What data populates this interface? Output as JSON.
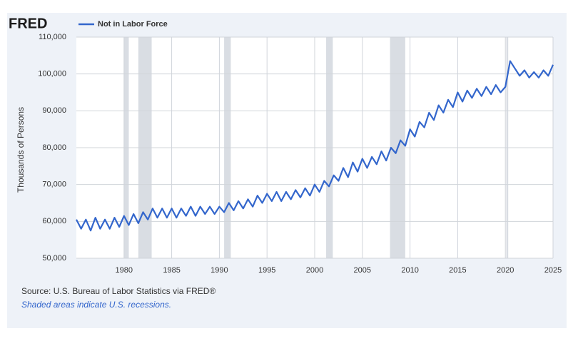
{
  "logo": "FRED",
  "chart_data": {
    "type": "line",
    "y_label": "Thousands of Persons",
    "source": "Source: U.S. Bureau of Labor Statistics via FRED®",
    "note": "Shaded areas indicate U.S. recessions.",
    "xlim": [
      1975,
      2025
    ],
    "xticks": [
      1980,
      1985,
      1990,
      1995,
      2000,
      2005,
      2010,
      2015,
      2020,
      2025
    ],
    "ylim": [
      50000,
      110000
    ],
    "yticks": [
      {
        "value": 50000,
        "label": "50,000"
      },
      {
        "value": 60000,
        "label": "60,000"
      },
      {
        "value": 70000,
        "label": "70,000"
      },
      {
        "value": 80000,
        "label": "80,000"
      },
      {
        "value": 90000,
        "label": "90,000"
      },
      {
        "value": 100000,
        "label": "100,000"
      },
      {
        "value": 110000,
        "label": "110,000"
      }
    ],
    "grid": true,
    "recessions": [
      [
        1980.0,
        1980.5
      ],
      [
        1981.5,
        1982.9
      ],
      [
        1990.5,
        1991.2
      ],
      [
        2001.2,
        2001.9
      ],
      [
        2007.9,
        2009.5
      ],
      [
        2020.1,
        2020.3
      ]
    ],
    "recession_color": "#d9dde3",
    "x": [
      1975.0,
      1975.5,
      1976.0,
      1976.5,
      1977.0,
      1977.5,
      1978.0,
      1978.5,
      1979.0,
      1979.5,
      1980.0,
      1980.5,
      1981.0,
      1981.5,
      1982.0,
      1982.5,
      1983.0,
      1983.5,
      1984.0,
      1984.5,
      1985.0,
      1985.5,
      1986.0,
      1986.5,
      1987.0,
      1987.5,
      1988.0,
      1988.5,
      1989.0,
      1989.5,
      1990.0,
      1990.5,
      1991.0,
      1991.5,
      1992.0,
      1992.5,
      1993.0,
      1993.5,
      1994.0,
      1994.5,
      1995.0,
      1995.5,
      1996.0,
      1996.5,
      1997.0,
      1997.5,
      1998.0,
      1998.5,
      1999.0,
      1999.5,
      2000.0,
      2000.5,
      2001.0,
      2001.5,
      2002.0,
      2002.5,
      2003.0,
      2003.5,
      2004.0,
      2004.5,
      2005.0,
      2005.5,
      2006.0,
      2006.5,
      2007.0,
      2007.5,
      2008.0,
      2008.5,
      2009.0,
      2009.5,
      2010.0,
      2010.5,
      2011.0,
      2011.5,
      2012.0,
      2012.5,
      2013.0,
      2013.5,
      2014.0,
      2014.5,
      2015.0,
      2015.5,
      2016.0,
      2016.5,
      2017.0,
      2017.5,
      2018.0,
      2018.5,
      2019.0,
      2019.5,
      2020.0,
      2020.5,
      2021.0,
      2021.5,
      2022.0,
      2022.5,
      2023.0,
      2023.5,
      2024.0,
      2024.5,
      2025.0
    ],
    "series": [
      {
        "name": "Not in Labor Force",
        "color": "#3366cc",
        "values": [
          60500,
          58000,
          60500,
          57500,
          61000,
          58000,
          60500,
          58000,
          61000,
          58500,
          61500,
          59000,
          62000,
          59500,
          62500,
          60500,
          63500,
          61000,
          63500,
          61000,
          63500,
          61000,
          63500,
          61500,
          64000,
          61500,
          64000,
          62000,
          64000,
          62000,
          64000,
          62500,
          65000,
          63000,
          65500,
          63500,
          66000,
          64000,
          67000,
          65000,
          67500,
          65500,
          68000,
          65500,
          68000,
          66000,
          68500,
          66500,
          69000,
          67000,
          70000,
          68000,
          71000,
          69500,
          72500,
          71000,
          74500,
          72000,
          76000,
          73500,
          77000,
          74500,
          77500,
          75500,
          79000,
          76500,
          80000,
          78500,
          82000,
          80500,
          85000,
          83000,
          87000,
          85500,
          89500,
          87500,
          91500,
          89500,
          93000,
          91000,
          95000,
          92500,
          95500,
          93500,
          96000,
          94000,
          96500,
          94500,
          97000,
          95000,
          96500,
          103500,
          101500,
          99500,
          101000,
          99000,
          100500,
          99000,
          101000,
          99500,
          102500
        ]
      }
    ]
  }
}
